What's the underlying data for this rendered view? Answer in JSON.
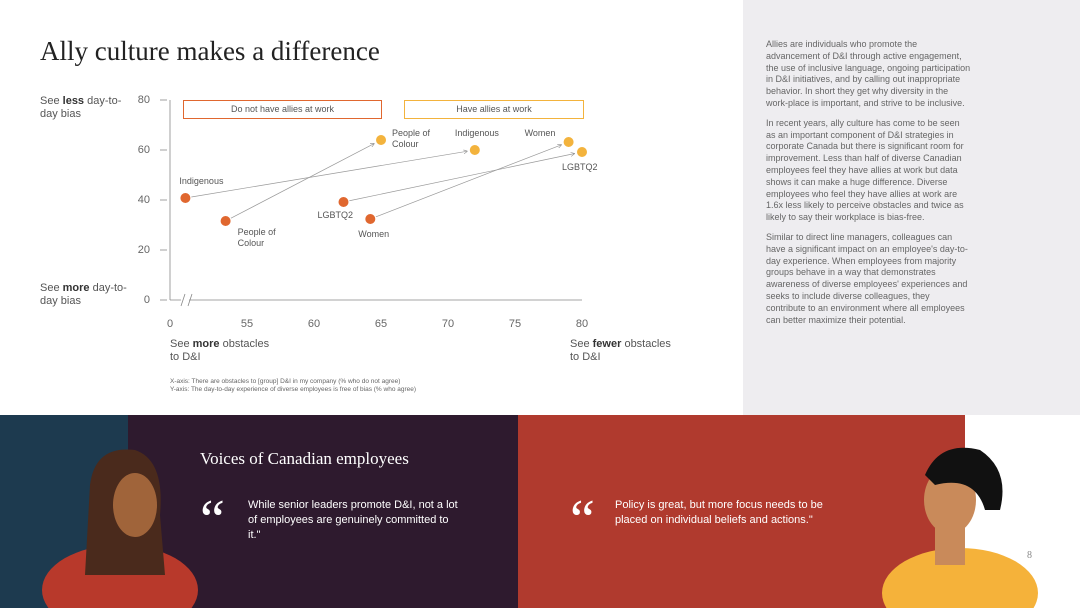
{
  "title": "Ally culture makes a difference",
  "chart_data": {
    "type": "scatter",
    "y_label_top": {
      "pre": "See ",
      "bold": "less",
      "post": " day-to-day bias"
    },
    "y_label_bottom": {
      "pre": "See ",
      "bold": "more",
      "post": " day-to-day bias"
    },
    "x_label_left": {
      "pre": "See ",
      "bold": "more",
      "post": " obstacles to D&I"
    },
    "x_label_right": {
      "pre": "See ",
      "bold": "fewer",
      "post": " obstacles to D&I"
    },
    "xlim": [
      49.25,
      81
    ],
    "xticks": [
      0,
      55,
      60,
      65,
      70,
      75,
      80
    ],
    "axis_break": true,
    "ylim": [
      0,
      80
    ],
    "yticks": [
      0,
      20,
      40,
      60,
      80
    ],
    "series": [
      {
        "name": "Do not have allies at work",
        "color": "#e0672f",
        "categories": [
          "Indigenous",
          "People of Colour",
          "LGBTQ2",
          "Women"
        ],
        "x": [
          50.4,
          53.4,
          62.2,
          64.2
        ],
        "values": [
          40.8,
          31.6,
          39.2,
          32.4
        ]
      },
      {
        "name": "Have allies at work",
        "color": "#f3b33d",
        "categories": [
          "People of Colour",
          "Indigenous",
          "Women",
          "LGBTQ2"
        ],
        "x": [
          65,
          72,
          79,
          80
        ],
        "values": [
          64,
          60,
          63.2,
          59.2
        ]
      }
    ],
    "notes": [
      "X-axis: There are obstacles to [group] D&I in my company (% who do not agree)",
      "Y-axis: The day-to-day experience of diverse employees is free of bias (% who agree)"
    ]
  },
  "sidebar": [
    "Allies are individuals who promote the advancement of D&I through active engagement, the use of inclusive language, ongoing participation in D&I initiatives, and by calling out inappropriate behavior. In short they get why diversity in the work-place is important, and strive to be inclusive.",
    "In recent years, ally culture has come to be seen as an important component of D&I strategies in corporate Canada but there is significant room for improvement. Less than half of diverse Canadian employees feel they have allies at work but data shows it can make a huge difference. Diverse employees who feel they have allies at work are 1.6x less likely to perceive obstacles and twice as likely to say their workplace is bias-free.",
    "Similar to direct line managers, colleagues can have a significant impact on an employee's day-to-day experience. When employees from majority groups behave in a way that demonstrates awareness of diverse employees' experiences and seeks to include diverse colleagues, they contribute to an environment where all employees can better maximize their potential."
  ],
  "voices": {
    "title": "Voices of Canadian employees",
    "quotes": [
      "While senior leaders promote D&I, not a lot of employees are genuinely committed to it.\"",
      "Policy is great, but more focus needs to be placed on individual beliefs and actions.\""
    ]
  },
  "page_number": "8"
}
